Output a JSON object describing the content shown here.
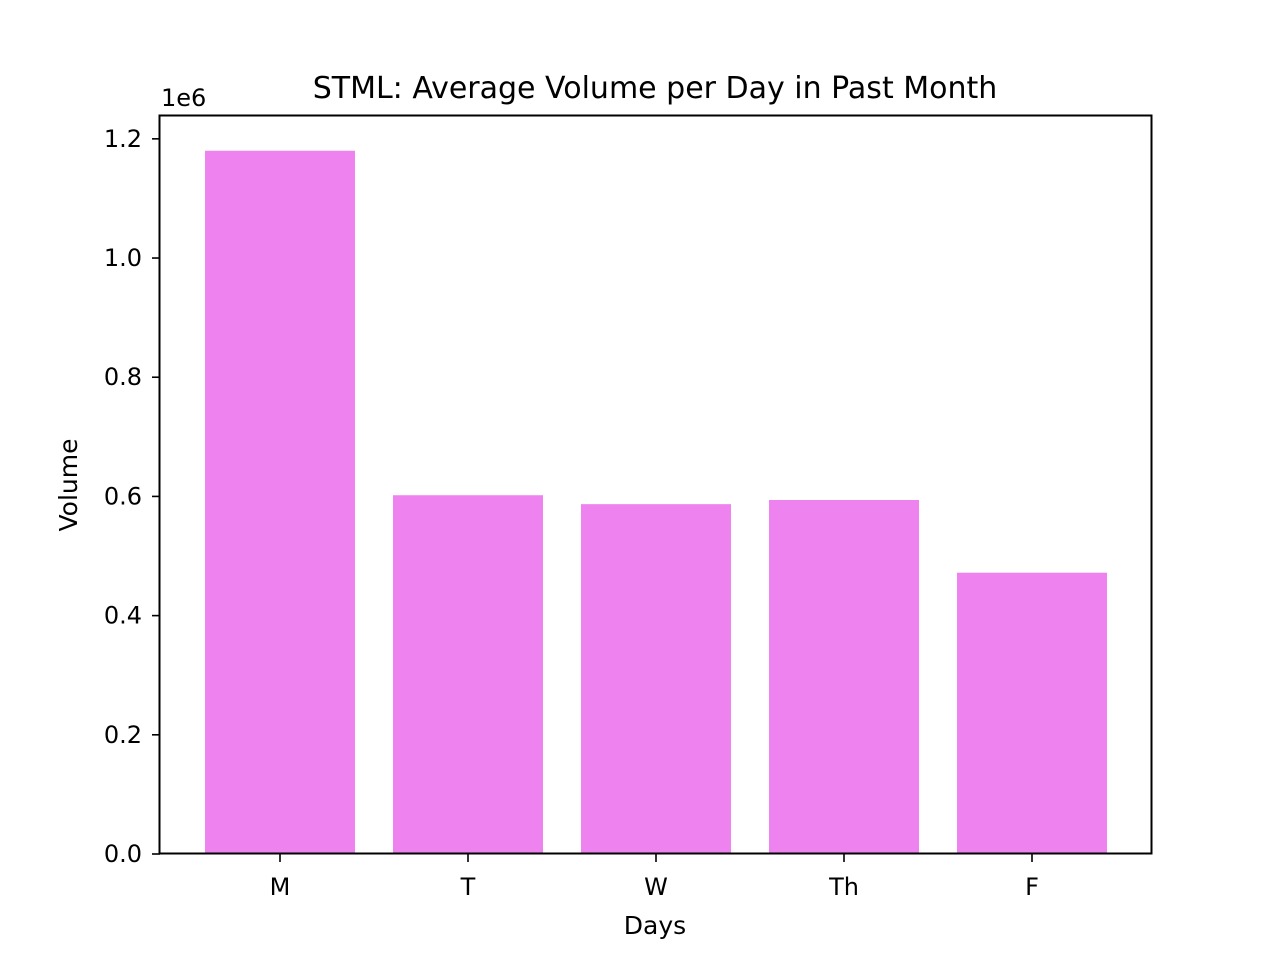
{
  "chart_data": {
    "type": "bar",
    "title": "STML: Average Volume per Day in Past Month",
    "xlabel": "Days",
    "ylabel": "Volume",
    "y_offset_label": "1e6",
    "categories": [
      "M",
      "T",
      "W",
      "Th",
      "F"
    ],
    "values": [
      1180000,
      602000,
      587000,
      594000,
      472000
    ],
    "ylim": [
      0,
      1240000
    ],
    "yticks": [
      0,
      200000,
      400000,
      600000,
      800000,
      1000000,
      1200000
    ],
    "ytick_labels": [
      "0.0",
      "0.2",
      "0.4",
      "0.6",
      "0.8",
      "1.0",
      "1.2"
    ],
    "bar_color": "#ee82ee",
    "grid": false,
    "legend": "none"
  }
}
